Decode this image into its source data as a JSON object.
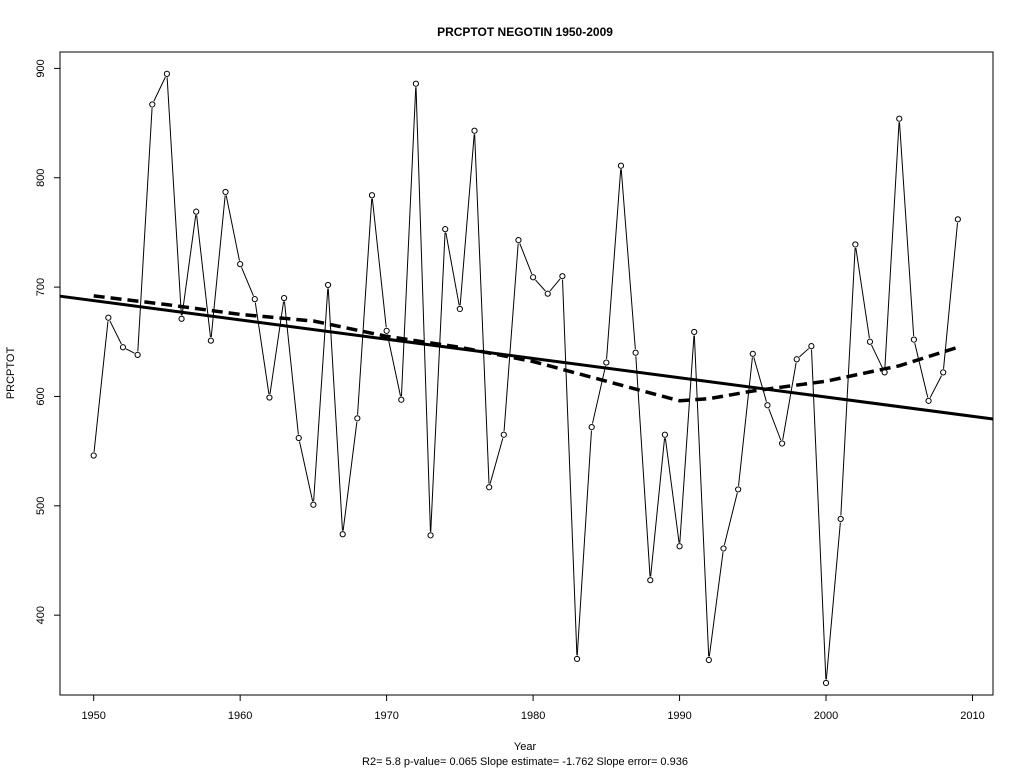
{
  "chart_data": {
    "type": "line",
    "title": "PRCPTOT   NEGOTIN 1950-2009",
    "xlabel": "Year",
    "ylabel": "PRCPTOT",
    "footer": "R2= 5.8  p-value= 0.065  Slope estimate= -1.762  Slope error= 0.936",
    "xlim": [
      1947.7,
      2011.4
    ],
    "ylim": [
      327,
      915
    ],
    "x_ticks": [
      1950,
      1960,
      1970,
      1980,
      1990,
      2000,
      2010
    ],
    "y_ticks": [
      400,
      500,
      600,
      700,
      800,
      900
    ],
    "grid": false,
    "legend": "none",
    "series": [
      {
        "points": [
          [
            1950,
            546
          ],
          [
            1951,
            672
          ],
          [
            1952,
            645
          ],
          [
            1953,
            638
          ],
          [
            1954,
            867
          ],
          [
            1955,
            895
          ],
          [
            1956,
            671
          ],
          [
            1957,
            769
          ],
          [
            1958,
            651
          ],
          [
            1959,
            787
          ],
          [
            1960,
            721
          ],
          [
            1961,
            689
          ],
          [
            1962,
            599
          ],
          [
            1963,
            690
          ],
          [
            1964,
            562
          ],
          [
            1965,
            501
          ],
          [
            1966,
            702
          ],
          [
            1967,
            474
          ],
          [
            1968,
            580
          ],
          [
            1969,
            784
          ],
          [
            1970,
            660
          ],
          [
            1971,
            597
          ],
          [
            1972,
            886
          ],
          [
            1973,
            473
          ],
          [
            1974,
            753
          ],
          [
            1975,
            680
          ],
          [
            1976,
            843
          ],
          [
            1977,
            517
          ],
          [
            1978,
            565
          ],
          [
            1979,
            743
          ],
          [
            1980,
            709
          ],
          [
            1981,
            694
          ],
          [
            1982,
            710
          ],
          [
            1983,
            360
          ],
          [
            1984,
            572
          ],
          [
            1985,
            631
          ],
          [
            1986,
            811
          ],
          [
            1987,
            640
          ],
          [
            1988,
            432
          ],
          [
            1989,
            565
          ],
          [
            1990,
            463
          ],
          [
            1991,
            659
          ],
          [
            1992,
            359
          ],
          [
            1993,
            461
          ],
          [
            1994,
            515
          ],
          [
            1995,
            639
          ],
          [
            1996,
            592
          ],
          [
            1997,
            557
          ],
          [
            1998,
            634
          ],
          [
            1999,
            646
          ],
          [
            2000,
            338
          ],
          [
            2001,
            488
          ],
          [
            2002,
            739
          ],
          [
            2003,
            650
          ],
          [
            2004,
            622
          ],
          [
            2005,
            854
          ],
          [
            2006,
            652
          ],
          [
            2007,
            596
          ],
          [
            2008,
            622
          ],
          [
            2009,
            762
          ]
        ]
      },
      {
        "style": "solid",
        "points": [
          [
            1947.7,
            691.7
          ],
          [
            2011.4,
            579.4
          ]
        ]
      },
      {
        "style": "dashed",
        "points": [
          [
            1950,
            692
          ],
          [
            1955,
            684
          ],
          [
            1960,
            675
          ],
          [
            1965,
            669
          ],
          [
            1970,
            655
          ],
          [
            1975,
            645
          ],
          [
            1980,
            632
          ],
          [
            1985,
            614
          ],
          [
            1990,
            596
          ],
          [
            1992,
            598
          ],
          [
            1995,
            605
          ],
          [
            2000,
            614
          ],
          [
            2005,
            628
          ],
          [
            2009,
            645
          ]
        ]
      }
    ]
  },
  "colors": {
    "foreground": "#000000",
    "background": "#ffffff"
  }
}
